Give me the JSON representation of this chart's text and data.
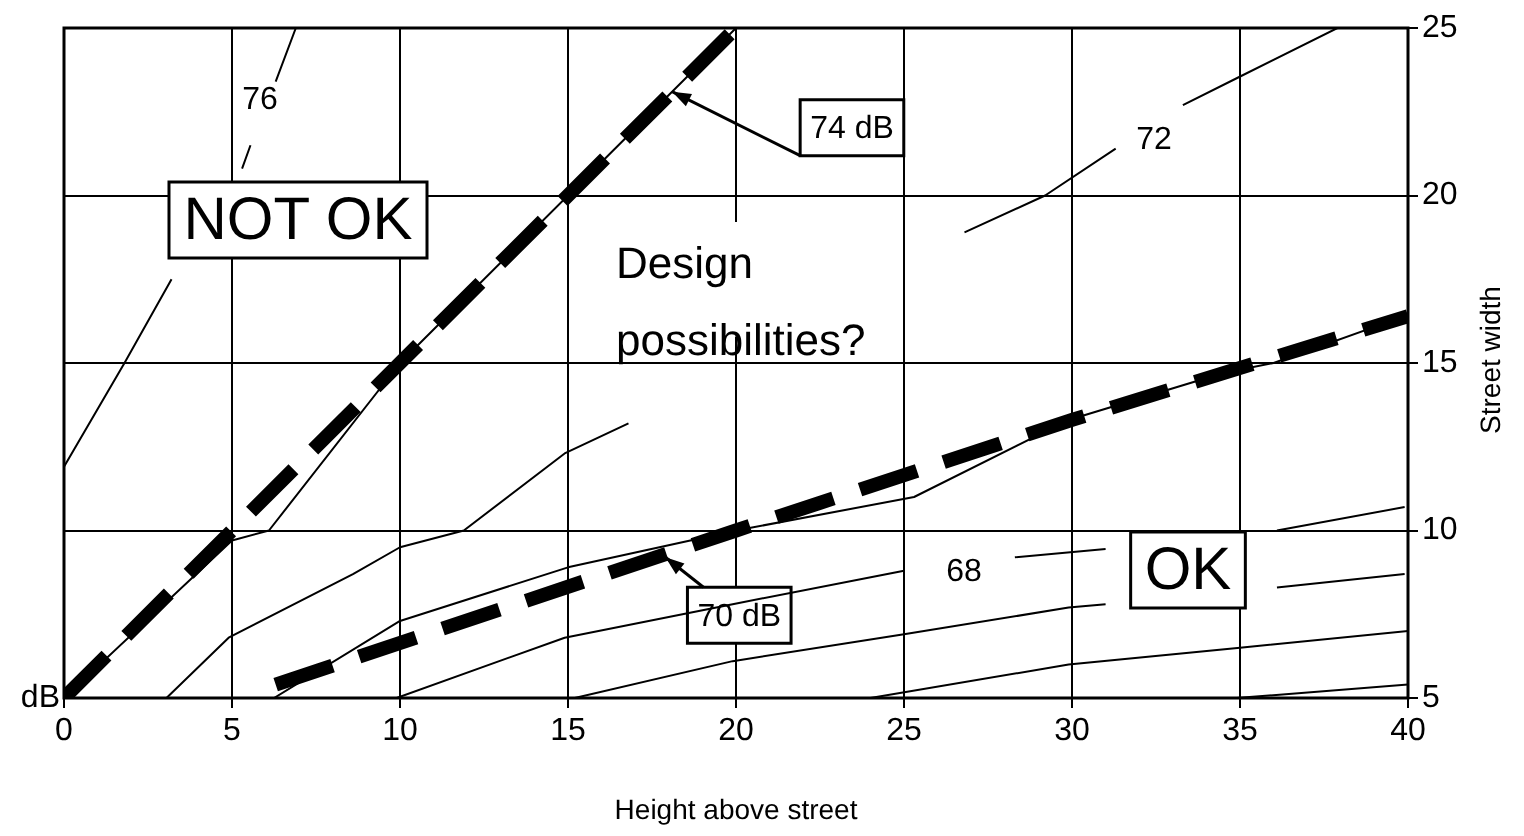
{
  "chart_data": {
    "type": "line",
    "xlabel": "Height above street",
    "ylabel": "Street width",
    "xlim": [
      0,
      40
    ],
    "ylim": [
      5,
      25
    ],
    "xticks": [
      0,
      5,
      10,
      15,
      20,
      25,
      30,
      35,
      40
    ],
    "yticks": [
      5,
      10,
      15,
      20,
      25
    ],
    "grid": true,
    "legend": false,
    "marker": "none",
    "series": [
      {
        "color": "#000000",
        "line_style": "solid",
        "x": [
          0,
          1.8,
          3.2,
          3.6,
          5.3,
          5.55,
          5.9,
          6.3,
          6.9
        ],
        "values": [
          11.9,
          15,
          17.5,
          null,
          20.8,
          21.5,
          null,
          23.4,
          25
        ]
      },
      {
        "color": "#000000",
        "line_style": "solid",
        "x": [
          0,
          5,
          6.1,
          10,
          15,
          20
        ],
        "values": [
          5,
          9.7,
          10,
          15,
          20,
          25
        ]
      },
      {
        "color": "#000000",
        "line_style": "solid",
        "x": [
          3.05,
          4.9,
          8.6,
          10,
          11.9,
          14.9,
          16.8,
          21,
          26.8,
          29.2,
          31.3,
          32.3,
          33.3,
          34.9,
          37.9
        ],
        "values": [
          5,
          6.8,
          8.7,
          9.5,
          10,
          12.3,
          13.2,
          null,
          18.9,
          20,
          21.4,
          null,
          22.7,
          23.5,
          25
        ]
      },
      {
        "color": "#000000",
        "line_style": "solid",
        "x": [
          6.25,
          10,
          15,
          20,
          25.3,
          29.9,
          34.5,
          36,
          39.9
        ],
        "values": [
          5,
          7.3,
          8.9,
          10,
          11,
          13.3,
          14.7,
          15,
          16.4
        ]
      },
      {
        "color": "#000000",
        "line_style": "solid",
        "x": [
          9.9,
          14.9,
          19.9,
          25,
          26,
          28.3,
          31,
          33,
          36.1,
          39.9
        ],
        "values": [
          5,
          6.8,
          7.8,
          8.8,
          null,
          9.2,
          9.45,
          null,
          10,
          10.7
        ]
      },
      {
        "color": "#000000",
        "line_style": "solid",
        "x": [
          15.2,
          19.9,
          25,
          29.9,
          31,
          33,
          36.1,
          39.9
        ],
        "values": [
          5,
          6.1,
          6.9,
          7.7,
          7.8,
          null,
          8.3,
          8.7
        ]
      },
      {
        "color": "#000000",
        "line_style": "solid",
        "x": [
          24,
          29.9,
          35,
          40
        ],
        "values": [
          5,
          6,
          6.5,
          7
        ]
      },
      {
        "color": "#000000",
        "line_style": "solid",
        "x": [
          34.9,
          40
        ],
        "values": [
          5,
          5.4
        ]
      },
      {
        "color": "#000000",
        "line_style": "dashed",
        "x": [
          0,
          20
        ],
        "values": [
          5,
          25
        ]
      },
      {
        "color": "#000000",
        "line_style": "dashed",
        "x": [
          6.3,
          20,
          30,
          40
        ],
        "values": [
          5.4,
          10,
          13.3,
          16.4
        ]
      }
    ],
    "annotations": [
      "NOT OK",
      "OK",
      "Design possibilities?",
      {
        "text": "74 dB",
        "x": 18.1,
        "y": 23.1
      },
      {
        "text": "70 dB",
        "x": 17.9,
        "y": 9.2
      },
      "76",
      "72",
      "68",
      "dB"
    ]
  }
}
